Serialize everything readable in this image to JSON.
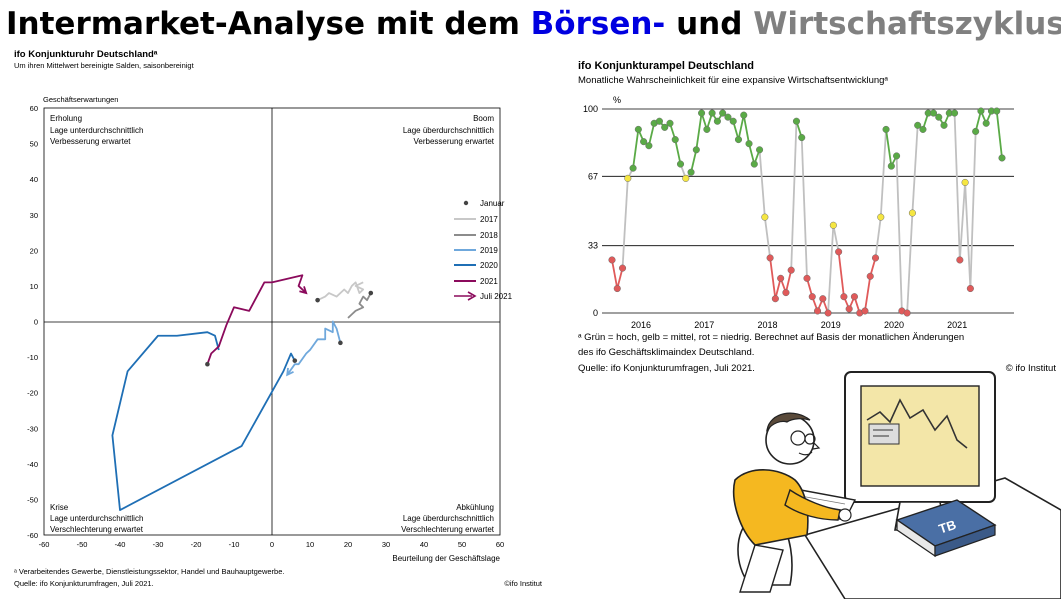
{
  "slide": {
    "title_part1": "Intermarket-Analyse mit dem ",
    "title_part2": "Börsen-",
    "title_part3": " und ",
    "title_part4": "Wirtschaftszyklus",
    "colors": {
      "blue": "#0000e0",
      "grey": "#808080"
    }
  },
  "chart_data": [
    {
      "type": "scatter",
      "title": "ifo Konjunkturuhr  Deutschlandᵃ",
      "subtitle": "Um ihren Mittelwert bereinigte Salden, saisonbereinigt",
      "ylabel": "Geschäftserwartungen",
      "xlabel": "Beurteilung der Geschäftslage",
      "xlim": [
        -60,
        60
      ],
      "ylim": [
        -60,
        60
      ],
      "xticks": [
        -60,
        -50,
        -40,
        -30,
        -20,
        -10,
        0,
        10,
        20,
        30,
        40,
        50,
        60
      ],
      "yticks": [
        -60,
        -50,
        -40,
        -30,
        -20,
        -10,
        0,
        10,
        20,
        30,
        40,
        50,
        60
      ],
      "grid": false,
      "legend_placement": "right",
      "quadrants": [
        {
          "name": "Erholung",
          "line1": "Lage unterdurchschnittlich",
          "line2": "Verbesserung erwartet"
        },
        {
          "name": "Boom",
          "line1": "Lage überdurchschnittlich",
          "line2": "Verbesserung erwartet"
        },
        {
          "name": "Krise",
          "line1": "Lage unterdurchschnittlich",
          "line2": "Verschlechterung erwartet"
        },
        {
          "name": "Abkühlung",
          "line1": "Lage überdurchschnittlich",
          "line2": "Verschlechterung erwartet"
        }
      ],
      "legend": {
        "january": "Januar",
        "last": "Juli 2021"
      },
      "series": [
        {
          "name": "2017",
          "color": "#c8c8c8",
          "x": [
            12,
            14,
            15,
            17,
            19,
            20,
            21,
            22,
            23,
            24,
            22,
            24
          ],
          "y": [
            6,
            7,
            8,
            7,
            9,
            8,
            10,
            11,
            8,
            9,
            10,
            11
          ]
        },
        {
          "name": "2018",
          "color": "#8c8c8c",
          "x": [
            26,
            25,
            24,
            23,
            24,
            22,
            21,
            20
          ],
          "y": [
            8,
            6,
            7,
            5,
            4,
            3,
            2,
            1
          ]
        },
        {
          "name": "2019",
          "color": "#6fa8dc",
          "x": [
            18,
            17,
            16,
            16,
            14,
            14,
            12,
            10,
            9,
            7,
            6,
            4
          ],
          "y": [
            -6,
            -2,
            0,
            -3,
            -2,
            -5,
            -5,
            -8,
            -9,
            -12,
            -12,
            -15
          ]
        },
        {
          "name": "2020",
          "color": "#1f6fb5",
          "x": [
            6,
            5,
            3,
            -8,
            -40,
            -42,
            -38,
            -30,
            -25,
            -17,
            -15,
            -14
          ],
          "y": [
            -11,
            -9,
            -14,
            -35,
            -53,
            -32,
            -14,
            -4,
            -4,
            -3,
            -4,
            -8
          ]
        },
        {
          "name": "2021",
          "color": "#8b0a5c",
          "x": [
            -17,
            -16,
            -14,
            -12,
            -10,
            -6,
            -2,
            0,
            8,
            7,
            9
          ],
          "y": [
            -12,
            -9,
            -7,
            -1,
            4,
            3,
            11,
            11,
            13,
            10,
            8
          ]
        }
      ],
      "footnote": "ᵃ Verarbeitendes Gewerbe, Dienstleistungssektor, Handel und Bauhauptgewerbe.",
      "source": "Quelle: ifo Konjunkturumfragen, Juli 2021.",
      "copyright": "©ifo Institut"
    },
    {
      "type": "line",
      "title": "ifo Konjunkturampel  Deutschland",
      "subtitle": "Monatliche Wahrscheinlichkeit für eine expansive Wirtschaftsentwicklungᵃ",
      "ylabel": "%",
      "ylim": [
        0,
        100
      ],
      "yticks": [
        0,
        33,
        67,
        100
      ],
      "xticks": [
        "2016",
        "2017",
        "2018",
        "2019",
        "2020",
        "2021"
      ],
      "grid": true,
      "colors": {
        "green": "#5aaa46",
        "yellow": "#f5e642",
        "red": "#e05a5a",
        "grey_line": "#c0c0c0"
      },
      "x_start": "2015-07",
      "values": [
        26,
        12,
        22,
        66,
        71,
        90,
        84,
        82,
        93,
        94,
        91,
        93,
        85,
        73,
        66,
        69,
        80,
        98,
        90,
        98,
        94,
        98,
        96,
        94,
        85,
        97,
        83,
        73,
        80,
        47,
        27,
        7,
        17,
        10,
        21,
        94,
        86,
        17,
        8,
        1,
        7,
        0,
        43,
        30,
        8,
        2,
        8,
        0,
        1,
        18,
        27,
        47,
        90,
        72,
        77,
        1,
        0,
        49,
        92,
        90,
        98,
        98,
        96,
        92,
        98,
        98,
        26,
        64,
        12,
        89,
        99,
        93,
        99,
        99,
        76
      ],
      "states": [
        "r",
        "r",
        "r",
        "y",
        "g",
        "g",
        "g",
        "g",
        "g",
        "g",
        "g",
        "g",
        "g",
        "g",
        "y",
        "g",
        "g",
        "g",
        "g",
        "g",
        "g",
        "g",
        "g",
        "g",
        "g",
        "g",
        "g",
        "g",
        "g",
        "y",
        "r",
        "r",
        "r",
        "r",
        "r",
        "g",
        "g",
        "r",
        "r",
        "r",
        "r",
        "r",
        "y",
        "r",
        "r",
        "r",
        "r",
        "r",
        "r",
        "r",
        "r",
        "y",
        "g",
        "g",
        "g",
        "r",
        "r",
        "y",
        "g",
        "g",
        "g",
        "g",
        "g",
        "g",
        "g",
        "g",
        "r",
        "y",
        "r",
        "g",
        "g",
        "g",
        "g",
        "g",
        "g"
      ],
      "footnote": "ᵃ Grün = hoch, gelb = mittel, rot = niedrig. Berechnet auf Basis der monatlichen Änderungen",
      "footnote2": "des ifo Geschäftsklimaindex Deutschland.",
      "source": "Quelle: ifo Konjunkturumfragen, Juli 2021.",
      "copyright": "© ifo Institut"
    }
  ],
  "cartoon": {
    "book_label": "TB"
  }
}
